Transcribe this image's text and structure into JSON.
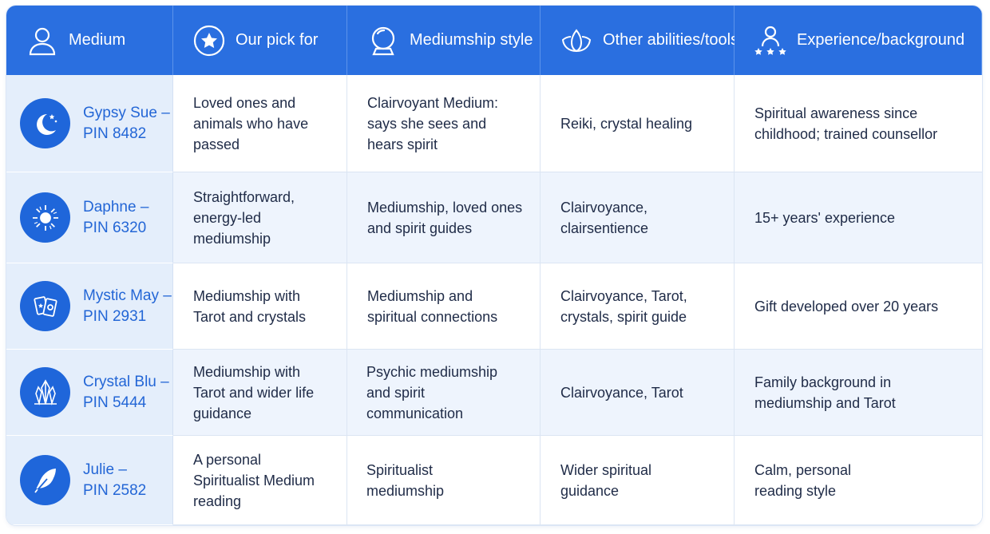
{
  "header": {
    "medium": "Medium",
    "pick": "Our pick for",
    "style": "Mediumship style",
    "abilities": "Other abilities/tools",
    "experience": "Experience/background"
  },
  "rows": [
    {
      "name": "Gypsy Sue –\nPIN 8482",
      "icon": "moon-stars-icon",
      "pick": "Loved ones and animals who have passed",
      "style": "Clairvoyant Medium: says she sees and hears spirit",
      "abilities": "Reiki, crystal healing",
      "experience": "Spiritual awareness since childhood; trained counsellor"
    },
    {
      "name": "Daphne –\nPIN 6320",
      "icon": "sun-icon",
      "pick": "Straightforward, energy-led mediumship",
      "style": "Mediumship, loved ones and spirit guides",
      "abilities": "Clairvoyance, clairsentience",
      "experience": "15+ years' experience"
    },
    {
      "name": "Mystic May –\nPIN 2931",
      "icon": "tarot-cards-icon",
      "pick": "Mediumship with Tarot and crystals",
      "style": "Mediumship and spiritual connections",
      "abilities": "Clairvoyance, Tarot, crystals, spirit guide",
      "experience": "Gift developed over 20 years"
    },
    {
      "name": "Crystal Blu –\nPIN 5444",
      "icon": "crystal-icon",
      "pick": "Mediumship with Tarot and wider life guidance",
      "style": "Psychic mediumship and spirit communication",
      "abilities": "Clairvoyance, Tarot",
      "experience": "Family background in mediumship and Tarot"
    },
    {
      "name": "Julie –\nPIN 2582",
      "icon": "feather-icon",
      "pick": "A personal Spiritualist Medium reading",
      "style": "Spiritualist mediumship",
      "abilities": "Wider spiritual guidance",
      "experience": "Calm, personal reading style"
    }
  ],
  "colors": {
    "header_bg": "#2a6fe0",
    "name_col_bg": "#e4eefb",
    "avatar_bg": "#1f66da",
    "name_text": "#2366d6",
    "alt_row_bg": "#eef4fd"
  }
}
